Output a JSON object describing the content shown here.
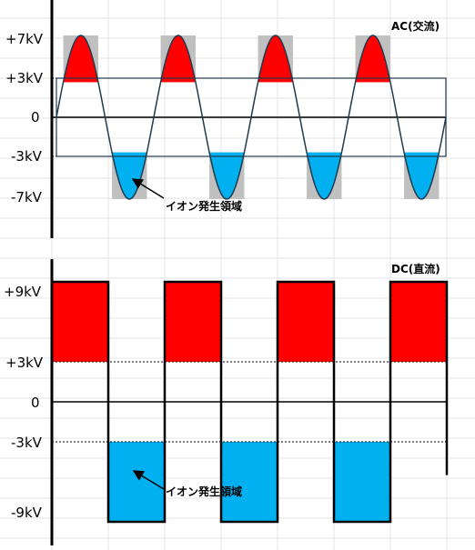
{
  "ac": {
    "title": "AC(交流)",
    "labels": [
      "+7kV",
      "+3kV",
      "0",
      "-3kV",
      "-7kV"
    ],
    "annotation": "イオン発生領域",
    "cycles": 4,
    "peak_kv": 7,
    "threshold_kv": 3,
    "colors": {
      "positive": "#ff0000",
      "negative": "#00b0f0",
      "zone": "#c0c0c0"
    }
  },
  "dc": {
    "title": "DC(直流)",
    "labels": [
      "+9kV",
      "+3kV",
      "0",
      "-3kV",
      "-9kV"
    ],
    "annotation": "イオン発生領域",
    "pulses": 4,
    "peak_kv": 9,
    "threshold_kv": 3,
    "colors": {
      "positive": "#ff0000",
      "negative": "#00b0f0"
    }
  }
}
